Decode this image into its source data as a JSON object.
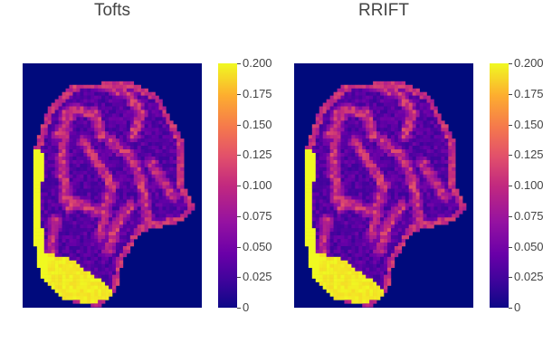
{
  "chart_data": [
    {
      "type": "heatmap",
      "title": "Tofts",
      "colorscale": "plasma",
      "zlim": [
        0,
        0.2
      ],
      "colorbar_ticks": [
        "0",
        "0.025",
        "0.050",
        "0.075",
        "0.100",
        "0.125",
        "0.150",
        "0.175",
        "0.200"
      ],
      "regions": [
        {
          "label": "background",
          "value": 0.0
        },
        {
          "label": "interior",
          "value": 0.03
        },
        {
          "label": "rim",
          "value": 0.09
        },
        {
          "label": "left edge",
          "value": 0.2
        },
        {
          "label": "bottom lobe",
          "value": 0.2
        }
      ]
    },
    {
      "type": "heatmap",
      "title": "RRIFT",
      "colorscale": "plasma",
      "zlim": [
        0,
        0.2
      ],
      "colorbar_ticks": [
        "0",
        "0.025",
        "0.050",
        "0.075",
        "0.100",
        "0.125",
        "0.150",
        "0.175",
        "0.200"
      ],
      "regions": [
        {
          "label": "background",
          "value": 0.0
        },
        {
          "label": "interior",
          "value": 0.03
        },
        {
          "label": "rim",
          "value": 0.09
        },
        {
          "label": "left edge",
          "value": 0.2
        },
        {
          "label": "bottom lobe",
          "value": 0.2
        }
      ]
    }
  ]
}
